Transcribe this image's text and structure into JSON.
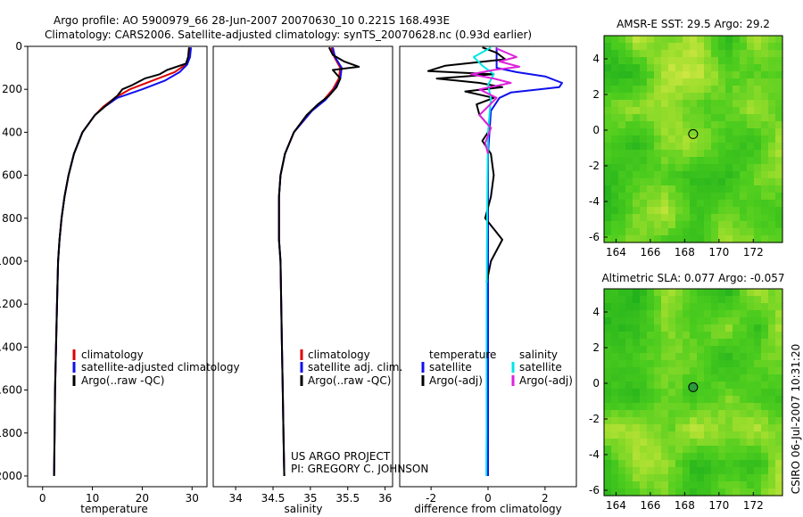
{
  "header": {
    "line1": "Argo profile: AO 5900979_66 28-Jun-2007 20070630_10 0.221S 168.493E",
    "line2": "Climatology: CARS2006. Satellite-adjusted climatology: synTS_20070628.nc (0.93d earlier)"
  },
  "footer_note": {
    "line1": "US ARGO PROJECT",
    "line2": "PI: GREGORY C. JOHNSON"
  },
  "side_label": "CSIRO 06-Jul-2007 10:31:20",
  "colors": {
    "climatology": "#dd0000",
    "satellite": "#1010ee",
    "argo": "#000000",
    "sal_satellite": "#00e5e5",
    "sal_argo": "#dd22dd"
  },
  "chart_data": [
    {
      "type": "line",
      "xlabel": "temperature",
      "ylabel": "",
      "xlim": [
        -3,
        33
      ],
      "ylim": [
        2050,
        0
      ],
      "x_ticks": [
        0,
        10,
        20,
        30
      ],
      "y_ticks": [
        0,
        200,
        400,
        600,
        800,
        1000,
        1200,
        1400,
        1600,
        1800,
        2000
      ],
      "legend": {
        "placement": "bottom-right",
        "entries": [
          "climatology",
          "satellite-adjusted climatology",
          "Argo(..raw -QC)"
        ]
      },
      "series": [
        {
          "name": "climatology",
          "color_key": "climatology",
          "x": [
            29.5,
            29.3,
            28.7,
            26.5,
            22.0,
            17.5,
            14.5,
            12.2,
            10.5,
            8.0,
            6.3,
            5.2,
            4.4,
            3.8,
            3.4,
            3.1,
            2.9,
            2.7,
            2.5,
            2.4,
            2.3
          ],
          "y": [
            5,
            50,
            85,
            120,
            160,
            200,
            240,
            280,
            320,
            400,
            500,
            600,
            700,
            800,
            900,
            1000,
            1200,
            1400,
            1600,
            1800,
            2000
          ]
        },
        {
          "name": "satellite-adjusted climatology",
          "color_key": "satellite",
          "x": [
            29.8,
            29.6,
            29.0,
            27.5,
            24.5,
            20.0,
            15.0,
            12.5,
            10.5,
            8.0,
            6.3,
            5.2,
            4.4,
            3.8,
            3.4,
            3.1,
            2.9,
            2.7,
            2.5,
            2.4,
            2.3
          ],
          "y": [
            5,
            50,
            85,
            120,
            160,
            200,
            240,
            280,
            320,
            400,
            500,
            600,
            700,
            800,
            900,
            1000,
            1200,
            1400,
            1600,
            1800,
            2000
          ]
        },
        {
          "name": "Argo(..raw -QC)",
          "color_key": "argo",
          "x": [
            29.4,
            29.2,
            28.8,
            25.0,
            23.5,
            20.5,
            18.0,
            16.0,
            15.0,
            13.5,
            12.0,
            10.5,
            8.0,
            6.3,
            5.2,
            4.4,
            3.8,
            3.4,
            3.1,
            2.9,
            2.7,
            2.5,
            2.4,
            2.3
          ],
          "y": [
            5,
            50,
            80,
            110,
            130,
            150,
            180,
            200,
            230,
            260,
            290,
            320,
            400,
            500,
            600,
            700,
            800,
            900,
            1000,
            1200,
            1400,
            1600,
            1800,
            2000
          ]
        }
      ]
    },
    {
      "type": "line",
      "xlabel": "salinity",
      "ylabel": "",
      "xlim": [
        33.7,
        36.1
      ],
      "ylim": [
        2050,
        0
      ],
      "x_ticks": [
        34,
        34.5,
        35,
        35.5,
        36
      ],
      "y_ticks": [],
      "legend": {
        "placement": "bottom-right",
        "entries": [
          "climatology",
          "satellite adj. clim.",
          "Argo(..raw -QC)"
        ]
      },
      "series": [
        {
          "name": "climatology",
          "color_key": "climatology",
          "x": [
            35.28,
            35.32,
            35.4,
            35.38,
            35.3,
            35.18,
            35.02,
            34.9,
            34.78,
            34.66,
            34.6,
            34.58,
            34.58,
            34.58,
            34.6,
            34.61,
            34.62,
            34.63,
            34.64,
            34.65
          ],
          "y": [
            5,
            50,
            100,
            150,
            200,
            250,
            300,
            350,
            400,
            500,
            600,
            700,
            800,
            900,
            1000,
            1200,
            1400,
            1600,
            1800,
            2000
          ]
        },
        {
          "name": "satellite adj. clim.",
          "color_key": "satellite",
          "x": [
            35.3,
            35.33,
            35.42,
            35.4,
            35.32,
            35.2,
            35.02,
            34.9,
            34.78,
            34.66,
            34.6,
            34.58,
            34.58,
            34.58,
            34.6,
            34.61,
            34.62,
            34.63,
            34.64,
            34.65
          ],
          "y": [
            5,
            50,
            100,
            150,
            200,
            250,
            300,
            350,
            400,
            500,
            600,
            700,
            800,
            900,
            1000,
            1200,
            1400,
            1600,
            1800,
            2000
          ]
        },
        {
          "name": "Argo(..raw -QC)",
          "color_key": "argo",
          "x": [
            35.25,
            35.3,
            35.45,
            35.65,
            35.3,
            35.4,
            35.35,
            35.25,
            35.1,
            34.95,
            34.78,
            34.66,
            34.6,
            34.58,
            34.58,
            34.58,
            34.6,
            34.61,
            34.62,
            34.63,
            34.64,
            34.65
          ],
          "y": [
            5,
            40,
            70,
            95,
            110,
            150,
            190,
            230,
            270,
            320,
            400,
            500,
            600,
            700,
            800,
            900,
            1000,
            1200,
            1400,
            1600,
            1800,
            2000
          ]
        }
      ]
    },
    {
      "type": "line",
      "xlabel": "difference from climatology",
      "ylabel": "",
      "xlim": [
        -3.1,
        3.1
      ],
      "ylim": [
        2050,
        0
      ],
      "x_ticks": [
        -2,
        0,
        2
      ],
      "y_ticks": [],
      "legend": {
        "placement": "bottom",
        "entries": [
          "temperature",
          "satellite",
          "Argo(-adj)",
          "salinity",
          "satellite",
          "Argo(-adj)"
        ]
      },
      "series": [
        {
          "name": "satellite",
          "color_key": "satellite",
          "x": [
            0.3,
            0.3,
            0.3,
            1.0,
            2.0,
            2.6,
            2.5,
            1.8,
            0.8,
            0.4,
            0.1,
            0.05,
            0,
            0,
            0,
            0,
            0,
            0,
            0
          ],
          "y": [
            5,
            60,
            100,
            120,
            140,
            170,
            190,
            200,
            215,
            240,
            300,
            400,
            500,
            700,
            1000,
            1300,
            1600,
            1800,
            2000
          ]
        },
        {
          "name": "Argo(-adj)",
          "color_key": "argo",
          "x": [
            -0.2,
            0.3,
            0.6,
            -1.5,
            -2.1,
            0.2,
            -1.8,
            -0.3,
            0.5,
            -0.8,
            0.2,
            -0.4,
            -0.3,
            0.1,
            -0.2,
            0.1,
            0.2,
            0.1,
            -0.1,
            0.2,
            0.5,
            0.3,
            0.1,
            -0.05
          ],
          "y": [
            5,
            30,
            60,
            90,
            115,
            130,
            150,
            170,
            190,
            210,
            240,
            270,
            320,
            380,
            440,
            500,
            600,
            700,
            800,
            850,
            900,
            950,
            1000,
            1100
          ]
        },
        {
          "name": "satellite",
          "color_key": "sal_satellite",
          "x": [
            0.1,
            -0.5,
            -0.2,
            0.2,
            0.0,
            0.1,
            0.05,
            0.0,
            -0.02,
            -0.03,
            -0.04,
            -0.05,
            -0.05,
            -0.06
          ],
          "y": [
            5,
            50,
            90,
            130,
            180,
            240,
            320,
            400,
            600,
            800,
            1000,
            1400,
            1800,
            2000
          ]
        },
        {
          "name": "Argo(-adj)",
          "color_key": "sal_argo",
          "x": [
            0.3,
            1.0,
            0.4,
            1.1,
            0.2,
            -0.6,
            0.2,
            0.8,
            -0.3,
            0.3,
            0.0,
            -0.3,
            0.1,
            -0.1,
            0.0
          ],
          "y": [
            10,
            50,
            70,
            95,
            110,
            130,
            150,
            170,
            200,
            240,
            280,
            320,
            380,
            450,
            500
          ]
        }
      ]
    },
    {
      "type": "heatmap",
      "title": "AMSR-E SST: 29.5 Argo: 29.2",
      "xlim": [
        163.3,
        173.7
      ],
      "ylim": [
        -6.3,
        5.3
      ],
      "x_ticks": [
        164,
        166,
        168,
        170,
        172
      ],
      "y_ticks": [
        -6,
        -4,
        -2,
        0,
        2,
        4
      ],
      "profile_marker": {
        "lon": 168.493,
        "lat": -0.221
      },
      "seed": 7
    },
    {
      "type": "heatmap",
      "title": "Altimetric SLA: 0.077 Argo: -0.057",
      "xlim": [
        163.3,
        173.7
      ],
      "ylim": [
        -6.3,
        5.3
      ],
      "x_ticks": [
        164,
        166,
        168,
        170,
        172
      ],
      "y_ticks": [
        -6,
        -4,
        -2,
        0,
        2,
        4
      ],
      "profile_marker": {
        "lon": 168.493,
        "lat": -0.221
      },
      "seed": 19
    }
  ]
}
